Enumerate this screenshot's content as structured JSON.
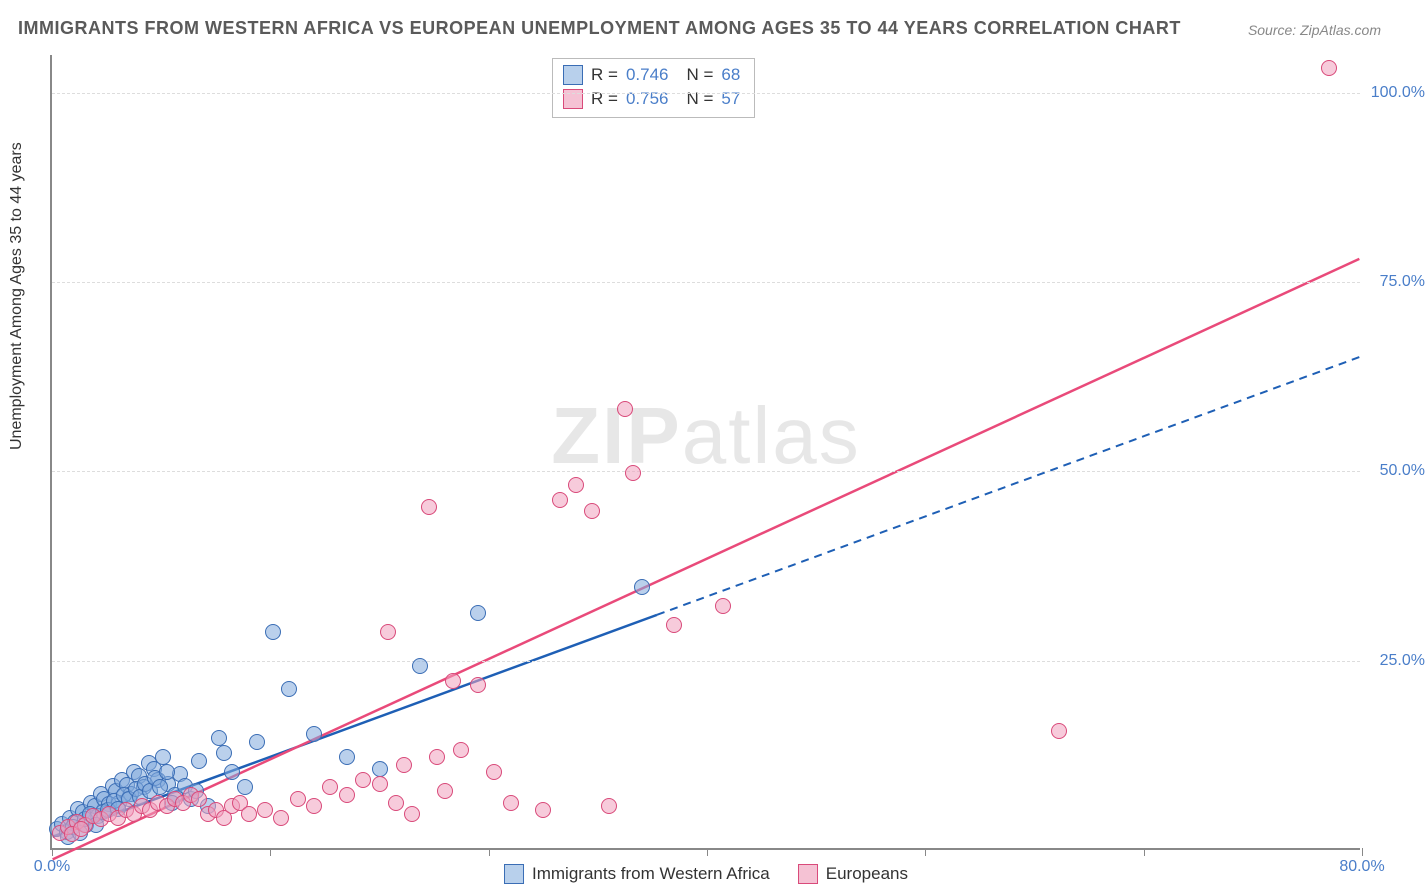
{
  "title": "IMMIGRANTS FROM WESTERN AFRICA VS EUROPEAN UNEMPLOYMENT AMONG AGES 35 TO 44 YEARS CORRELATION CHART",
  "source": "Source: ZipAtlas.com",
  "ylabel": "Unemployment Among Ages 35 to 44 years",
  "watermark_bold": "ZIP",
  "watermark_rest": "atlas",
  "chart": {
    "type": "scatter",
    "xlim": [
      0,
      80
    ],
    "ylim": [
      0,
      105
    ],
    "xtick_positions": [
      0,
      13.3,
      26.7,
      40,
      53.3,
      66.7,
      80
    ],
    "xtick_labels": [
      "0.0%",
      "",
      "",
      "",
      "",
      "",
      "80.0%"
    ],
    "ytick_positions": [
      25,
      50,
      75,
      100
    ],
    "ytick_labels": [
      "25.0%",
      "50.0%",
      "75.0%",
      "100.0%"
    ],
    "grid_color": "#dddddd",
    "axis_color": "#888888",
    "background_color": "#ffffff",
    "label_color": "#4a7ec9",
    "label_fontsize": 16,
    "title_fontsize": 18,
    "title_color": "#5a5a5a"
  },
  "series": [
    {
      "name": "Immigrants from Western Africa",
      "marker_fill": "rgba(130,170,220,0.55)",
      "marker_stroke": "#3a6db5",
      "marker_radius": 8,
      "trend_color": "#1e5fb5",
      "trend_solid_end": 37,
      "trend_y_at_0": 1.5,
      "trend_y_at_80": 65,
      "R": "0.746",
      "N": "68",
      "swatch_fill": "#b8d0ec",
      "swatch_border": "#3a6db5",
      "points": [
        [
          0.3,
          2.5
        ],
        [
          0.6,
          3.2
        ],
        [
          0.9,
          2.1
        ],
        [
          1.1,
          4.0
        ],
        [
          1.4,
          3.5
        ],
        [
          1.6,
          5.2
        ],
        [
          1.9,
          4.8
        ],
        [
          2.1,
          3.1
        ],
        [
          2.4,
          6.0
        ],
        [
          2.6,
          5.5
        ],
        [
          2.8,
          4.2
        ],
        [
          3.0,
          7.1
        ],
        [
          3.2,
          6.5
        ],
        [
          3.5,
          5.8
        ],
        [
          3.7,
          8.2
        ],
        [
          3.9,
          7.5
        ],
        [
          4.1,
          6.0
        ],
        [
          4.3,
          9.0
        ],
        [
          4.6,
          8.3
        ],
        [
          4.8,
          7.2
        ],
        [
          5.0,
          10.1
        ],
        [
          5.3,
          9.5
        ],
        [
          5.6,
          8.0
        ],
        [
          5.9,
          11.2
        ],
        [
          6.2,
          10.5
        ],
        [
          6.5,
          9.0
        ],
        [
          6.8,
          12.0
        ],
        [
          7.1,
          8.5
        ],
        [
          7.5,
          7.0
        ],
        [
          7.8,
          9.8
        ],
        [
          8.1,
          8.2
        ],
        [
          8.5,
          6.5
        ],
        [
          9.0,
          11.5
        ],
        [
          9.5,
          5.5
        ],
        [
          10.2,
          14.5
        ],
        [
          11.0,
          10.0
        ],
        [
          11.8,
          8.0
        ],
        [
          12.5,
          14.0
        ],
        [
          13.5,
          28.5
        ],
        [
          14.5,
          21.0
        ],
        [
          16.0,
          15.0
        ],
        [
          18.0,
          12.0
        ],
        [
          20.0,
          10.5
        ],
        [
          22.5,
          24.0
        ],
        [
          26.0,
          31.0
        ],
        [
          36.0,
          34.5
        ],
        [
          1.0,
          1.5
        ],
        [
          1.3,
          2.8
        ],
        [
          1.7,
          2.0
        ],
        [
          2.0,
          3.8
        ],
        [
          2.3,
          4.5
        ],
        [
          2.7,
          3.0
        ],
        [
          3.1,
          4.8
        ],
        [
          3.4,
          5.0
        ],
        [
          3.8,
          6.2
        ],
        [
          4.0,
          5.2
        ],
        [
          4.4,
          7.0
        ],
        [
          4.7,
          6.5
        ],
        [
          5.1,
          7.8
        ],
        [
          5.4,
          6.8
        ],
        [
          5.7,
          8.5
        ],
        [
          6.0,
          7.5
        ],
        [
          6.3,
          9.2
        ],
        [
          6.6,
          8.0
        ],
        [
          7.0,
          10.0
        ],
        [
          7.3,
          6.0
        ],
        [
          8.8,
          7.5
        ],
        [
          10.5,
          12.5
        ]
      ]
    },
    {
      "name": "Europeans",
      "marker_fill": "rgba(240,160,190,0.55)",
      "marker_stroke": "#d94a7a",
      "marker_radius": 8,
      "trend_color": "#e94a7a",
      "trend_solid_end": 80,
      "trend_y_at_0": -1.5,
      "trend_y_at_80": 78,
      "R": "0.756",
      "N": "57",
      "swatch_fill": "#f5c2d4",
      "swatch_border": "#d94a7a",
      "points": [
        [
          0.5,
          2.0
        ],
        [
          1.0,
          2.8
        ],
        [
          1.5,
          3.5
        ],
        [
          2.0,
          3.0
        ],
        [
          2.5,
          4.2
        ],
        [
          3.0,
          3.8
        ],
        [
          3.5,
          4.5
        ],
        [
          4.0,
          4.0
        ],
        [
          4.5,
          5.0
        ],
        [
          5.0,
          4.5
        ],
        [
          5.5,
          5.5
        ],
        [
          6.0,
          5.0
        ],
        [
          6.5,
          6.0
        ],
        [
          7.0,
          5.5
        ],
        [
          7.5,
          6.5
        ],
        [
          8.0,
          6.0
        ],
        [
          8.5,
          7.0
        ],
        [
          9.0,
          6.5
        ],
        [
          9.5,
          4.5
        ],
        [
          10.0,
          5.0
        ],
        [
          10.5,
          4.0
        ],
        [
          11.0,
          5.5
        ],
        [
          11.5,
          6.0
        ],
        [
          12.0,
          4.5
        ],
        [
          13.0,
          5.0
        ],
        [
          14.0,
          4.0
        ],
        [
          15.0,
          6.5
        ],
        [
          16.0,
          5.5
        ],
        [
          17.0,
          8.0
        ],
        [
          18.0,
          7.0
        ],
        [
          19.0,
          9.0
        ],
        [
          20.0,
          8.5
        ],
        [
          20.5,
          28.5
        ],
        [
          21.0,
          6.0
        ],
        [
          21.5,
          11.0
        ],
        [
          22.0,
          4.5
        ],
        [
          23.0,
          45.0
        ],
        [
          23.5,
          12.0
        ],
        [
          24.0,
          7.5
        ],
        [
          24.5,
          22.0
        ],
        [
          25.0,
          13.0
        ],
        [
          26.0,
          21.5
        ],
        [
          27.0,
          10.0
        ],
        [
          28.0,
          6.0
        ],
        [
          30.0,
          5.0
        ],
        [
          31.0,
          46.0
        ],
        [
          32.0,
          48.0
        ],
        [
          33.0,
          44.5
        ],
        [
          34.0,
          5.5
        ],
        [
          35.0,
          58.0
        ],
        [
          35.5,
          49.5
        ],
        [
          38.0,
          29.5
        ],
        [
          41.0,
          32.0
        ],
        [
          61.5,
          15.5
        ],
        [
          78.0,
          103.0
        ],
        [
          1.2,
          1.8
        ],
        [
          1.8,
          2.5
        ]
      ]
    }
  ],
  "legend": {
    "items": [
      {
        "label": "Immigrants from Western Africa",
        "fill": "#b8d0ec",
        "border": "#3a6db5"
      },
      {
        "label": "Europeans",
        "fill": "#f5c2d4",
        "border": "#d94a7a"
      }
    ]
  }
}
